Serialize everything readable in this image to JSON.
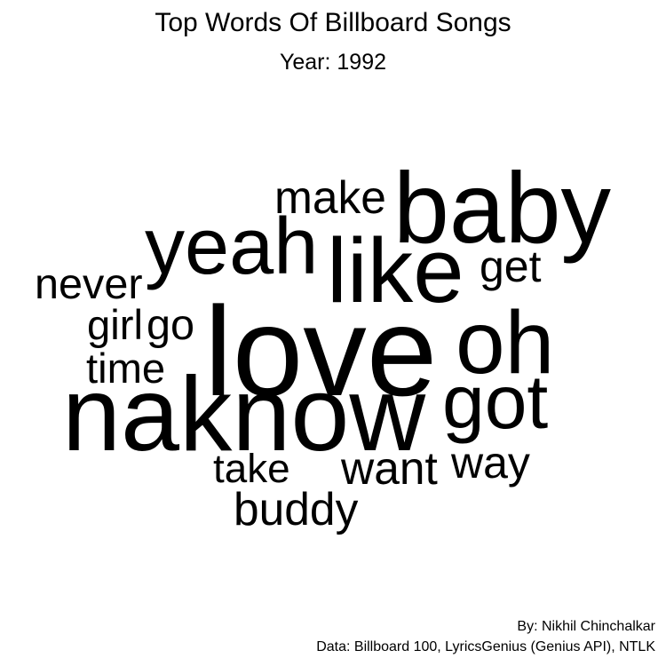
{
  "header": {
    "title": "Top Words Of Billboard Songs",
    "subtitle": "Year: 1992"
  },
  "footer": {
    "byline": "By: Nikhil Chinchalkar",
    "source": "Data: Billboard 100, LyricsGenius (Genius API), NTLK"
  },
  "chart_data": {
    "type": "wordcloud",
    "words": [
      {
        "text": "love",
        "weight": 100
      },
      {
        "text": "naknow",
        "weight": 83
      },
      {
        "text": "baby",
        "weight": 79
      },
      {
        "text": "like",
        "weight": 72
      },
      {
        "text": "oh",
        "weight": 70
      },
      {
        "text": "yeah",
        "weight": 63
      },
      {
        "text": "got",
        "weight": 60
      },
      {
        "text": "make",
        "weight": 36
      },
      {
        "text": "want",
        "weight": 36
      },
      {
        "text": "buddy",
        "weight": 36
      },
      {
        "text": "get",
        "weight": 35
      },
      {
        "text": "way",
        "weight": 35
      },
      {
        "text": "never",
        "weight": 34
      },
      {
        "text": "go",
        "weight": 34
      },
      {
        "text": "girl",
        "weight": 33
      },
      {
        "text": "time",
        "weight": 33
      },
      {
        "text": "take",
        "weight": 32
      }
    ]
  }
}
